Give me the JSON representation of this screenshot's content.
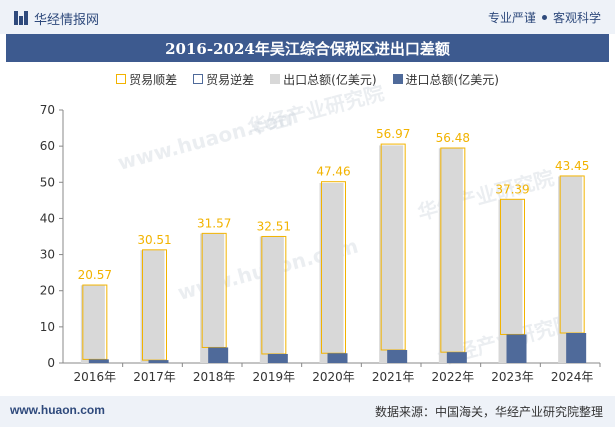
{
  "header": {
    "brand": "华经情报网",
    "tagline_left": "专业严谨",
    "tagline_right": "客观科学"
  },
  "chart_data": {
    "type": "bar",
    "title": "2016-2024年吴江综合保税区进出口差额",
    "categories": [
      "2016年",
      "2017年",
      "2018年",
      "2019年",
      "2020年",
      "2021年",
      "2022年",
      "2023年",
      "2024年"
    ],
    "series": [
      {
        "name": "出口总额(亿美元)",
        "values": [
          21.5,
          31.2,
          35.8,
          35.0,
          49.8,
          60.2,
          59.4,
          45.2,
          51.6
        ],
        "color": "#d8d8d8"
      },
      {
        "name": "进口总额(亿美元)",
        "values": [
          1.0,
          0.8,
          4.3,
          2.5,
          2.7,
          3.6,
          3.0,
          7.9,
          8.3
        ],
        "color": "#4f6a9a"
      },
      {
        "name": "贸易顺差",
        "values": [
          20.57,
          30.51,
          31.57,
          32.51,
          47.46,
          56.97,
          56.48,
          37.39,
          43.45
        ],
        "color": "#f2b300"
      },
      {
        "name": "贸易逆差",
        "values": [
          null,
          null,
          null,
          null,
          null,
          null,
          null,
          null,
          null
        ],
        "color": "#4f6a9a"
      }
    ],
    "data_labels": [
      "20.57",
      "30.51",
      "31.57",
      "32.51",
      "47.46",
      "56.97",
      "56.48",
      "37.39",
      "43.45"
    ],
    "ylim": [
      0,
      70
    ],
    "yticks": [
      "0",
      "10",
      "20",
      "30",
      "40",
      "50",
      "60",
      "70"
    ],
    "grid": false,
    "legend_position": "top",
    "label_color": "#f2b300"
  },
  "watermark": [
    "华经产业研究院",
    "www.huaon.com"
  ],
  "footer": {
    "left": "www.huaon.com",
    "right": "数据来源：中国海关，华经产业研究院整理"
  }
}
